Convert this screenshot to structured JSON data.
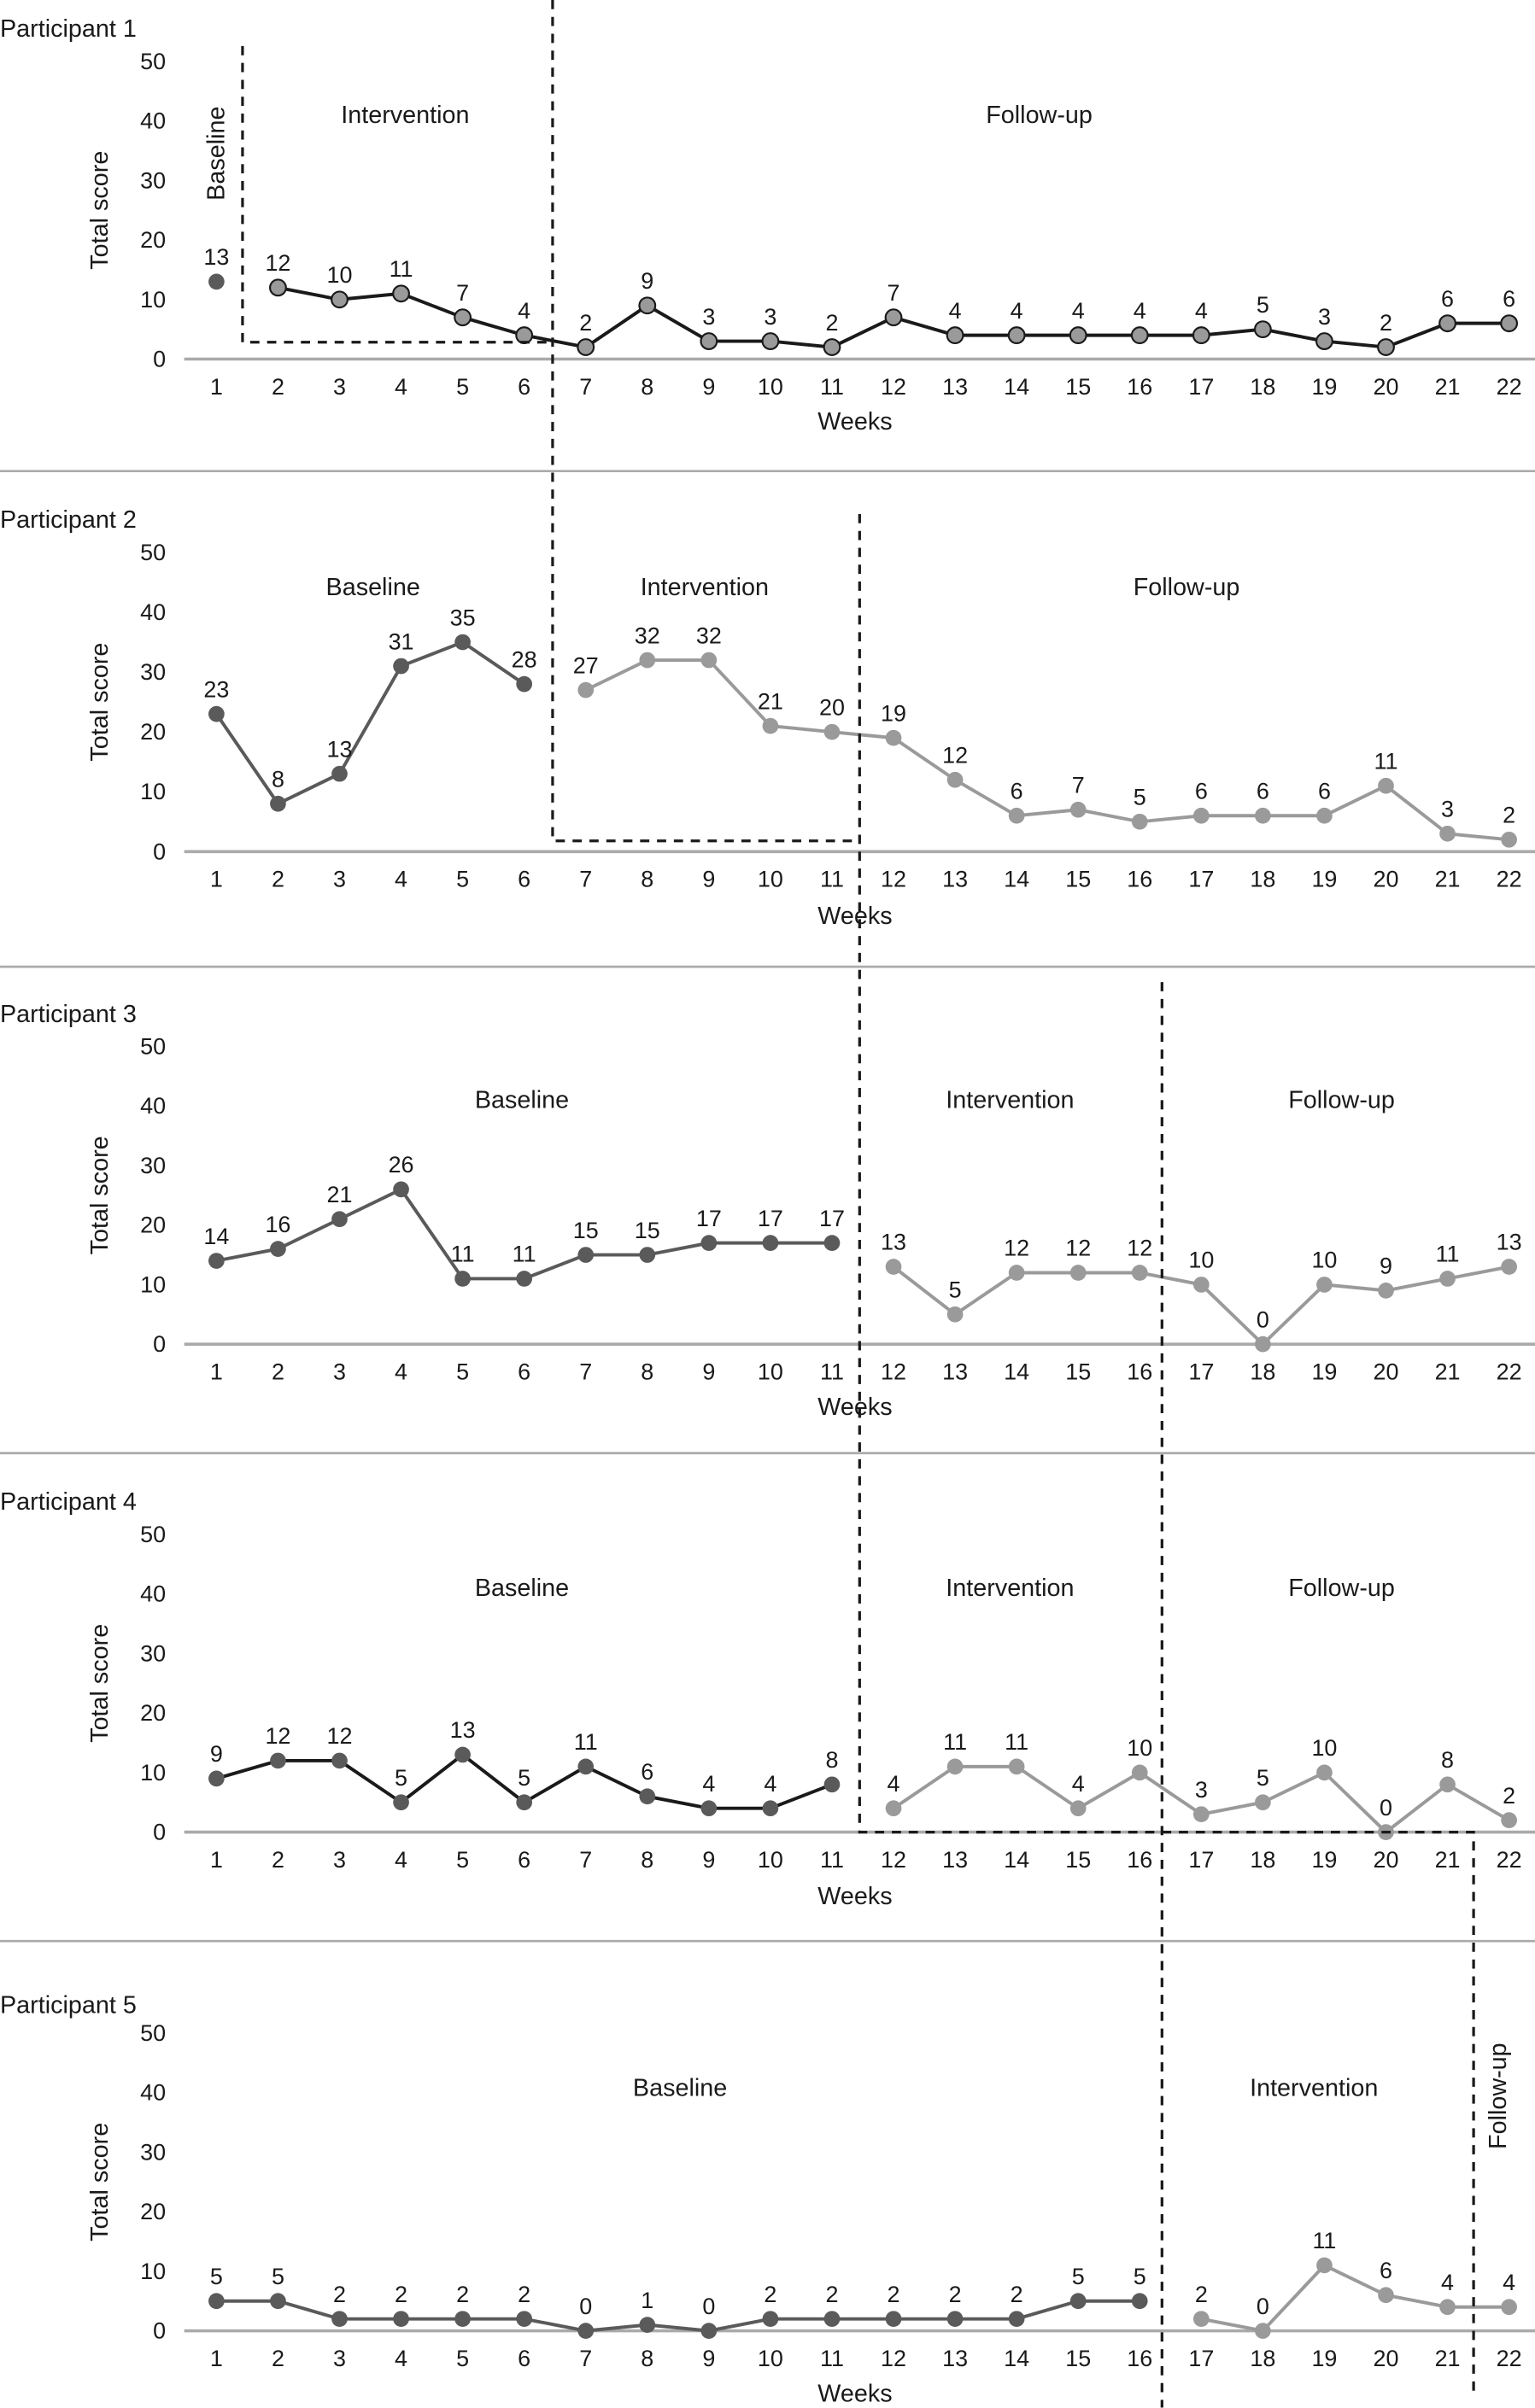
{
  "chart_data": {
    "type": "line",
    "xlabel": "Weeks",
    "ylabel": "Total score",
    "ylim": [
      0,
      50
    ],
    "yticks": [
      0,
      10,
      20,
      30,
      40,
      50
    ],
    "weeks": [
      1,
      2,
      3,
      4,
      5,
      6,
      7,
      8,
      9,
      10,
      11,
      12,
      13,
      14,
      15,
      16,
      17,
      18,
      19,
      20,
      21,
      22
    ],
    "grid": false,
    "colors": {
      "dark": "#5a5a5a",
      "light": "#9a9a9a",
      "black": "#1a1a1a",
      "axis": "#aaaaaa"
    },
    "panels": [
      {
        "title": "Participant 1",
        "phases": [
          {
            "label": "Baseline",
            "weeks": [
              1,
              1
            ]
          },
          {
            "label": "Intervention",
            "weeks": [
              2,
              6
            ]
          },
          {
            "label": "Follow-up",
            "weeks": [
              7,
              22
            ]
          }
        ],
        "segments": [
          {
            "style": "dark",
            "weeks": [
              1
            ],
            "values": [
              13
            ]
          },
          {
            "style": "outlined",
            "weeks": [
              2,
              3,
              4,
              5,
              6,
              7,
              8,
              9,
              10,
              11,
              12,
              13,
              14,
              15,
              16,
              17,
              18,
              19,
              20,
              21,
              22
            ],
            "values": [
              12,
              10,
              11,
              7,
              4,
              2,
              9,
              3,
              3,
              2,
              7,
              4,
              4,
              4,
              4,
              4,
              5,
              3,
              2,
              6,
              6
            ]
          }
        ]
      },
      {
        "title": "Participant 2",
        "phases": [
          {
            "label": "Baseline",
            "weeks": [
              1,
              6
            ]
          },
          {
            "label": "Intervention",
            "weeks": [
              7,
              11
            ]
          },
          {
            "label": "Follow-up",
            "weeks": [
              12,
              22
            ]
          }
        ],
        "segments": [
          {
            "style": "dark",
            "weeks": [
              1,
              2,
              3,
              4,
              5,
              6
            ],
            "values": [
              23,
              8,
              13,
              31,
              35,
              28
            ]
          },
          {
            "style": "light",
            "weeks": [
              7,
              8,
              9,
              10,
              11,
              12,
              13,
              14,
              15,
              16,
              17,
              18,
              19,
              20,
              21,
              22
            ],
            "values": [
              27,
              32,
              32,
              21,
              20,
              19,
              12,
              6,
              7,
              5,
              6,
              6,
              6,
              11,
              3,
              2
            ]
          }
        ]
      },
      {
        "title": "Participant 3",
        "phases": [
          {
            "label": "Baseline",
            "weeks": [
              1,
              11
            ]
          },
          {
            "label": "Intervention",
            "weeks": [
              12,
              16
            ]
          },
          {
            "label": "Follow-up",
            "weeks": [
              17,
              22
            ]
          }
        ],
        "segments": [
          {
            "style": "dark",
            "weeks": [
              1,
              2,
              3,
              4,
              5,
              6,
              7,
              8,
              9,
              10,
              11
            ],
            "values": [
              14,
              16,
              21,
              26,
              11,
              11,
              15,
              15,
              17,
              17,
              17
            ]
          },
          {
            "style": "light",
            "weeks": [
              12,
              13,
              14,
              15,
              16,
              17,
              18,
              19,
              20,
              21,
              22
            ],
            "values": [
              13,
              5,
              12,
              12,
              12,
              10,
              0,
              10,
              9,
              11,
              13
            ]
          }
        ]
      },
      {
        "title": "Participant 4",
        "phases": [
          {
            "label": "Baseline",
            "weeks": [
              1,
              11
            ]
          },
          {
            "label": "Intervention",
            "weeks": [
              12,
              16
            ]
          },
          {
            "label": "Follow-up",
            "weeks": [
              17,
              22
            ]
          }
        ],
        "segments": [
          {
            "style": "black-dark",
            "weeks": [
              1,
              2,
              3,
              4,
              5,
              6,
              7,
              8,
              9,
              10,
              11
            ],
            "values": [
              9,
              12,
              12,
              5,
              13,
              5,
              11,
              6,
              4,
              4,
              8
            ]
          },
          {
            "style": "light",
            "weeks": [
              12,
              13,
              14,
              15,
              16,
              17,
              18,
              19,
              20,
              21,
              22
            ],
            "values": [
              4,
              11,
              11,
              4,
              10,
              3,
              5,
              10,
              0,
              8,
              2
            ]
          }
        ]
      },
      {
        "title": "Participant 5",
        "phases": [
          {
            "label": "Baseline",
            "weeks": [
              1,
              16
            ]
          },
          {
            "label": "Intervention",
            "weeks": [
              17,
              21
            ]
          },
          {
            "label": "Follow-up",
            "weeks": [
              22,
              22
            ]
          }
        ],
        "segments": [
          {
            "style": "dark",
            "weeks": [
              1,
              2,
              3,
              4,
              5,
              6,
              7,
              8,
              9,
              10,
              11,
              12,
              13,
              14,
              15,
              16
            ],
            "values": [
              5,
              5,
              2,
              2,
              2,
              2,
              0,
              1,
              0,
              2,
              2,
              2,
              2,
              2,
              5,
              5
            ]
          },
          {
            "style": "light",
            "weeks": [
              17,
              18,
              19,
              20,
              21,
              22
            ],
            "values": [
              2,
              0,
              11,
              6,
              4,
              4
            ]
          }
        ]
      }
    ]
  }
}
